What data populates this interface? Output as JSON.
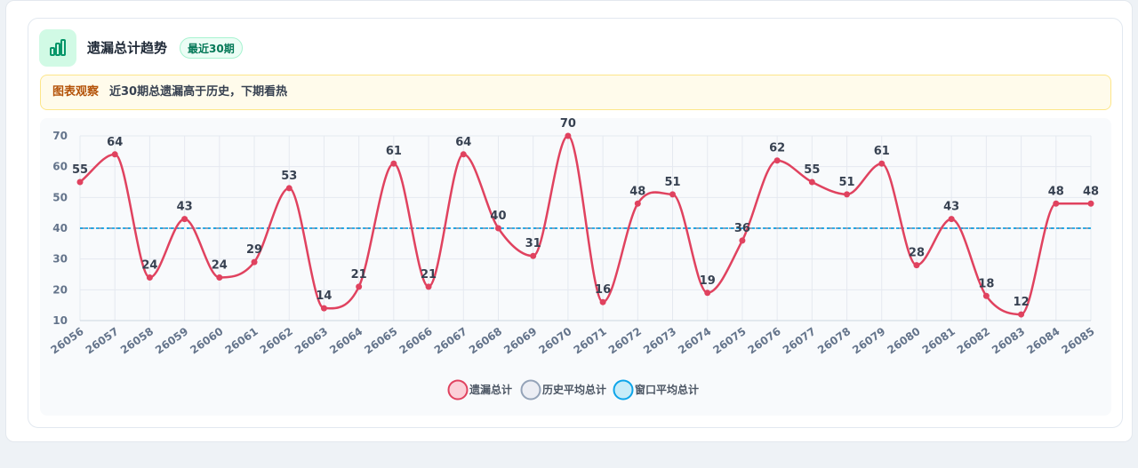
{
  "panel": {
    "title": "遗漏总计趋势",
    "badge": "最近30期",
    "notice_label": "图表观察",
    "notice_text": "近30期总遗漏高于历史，下期看热"
  },
  "colors": {
    "series_line": "#e0425f",
    "history_line": "#94a3b8",
    "window_line": "#0ea5e9",
    "icon_green": "#059669"
  },
  "chart_data": {
    "type": "line",
    "categories": [
      "26056",
      "26057",
      "26058",
      "26059",
      "26060",
      "26061",
      "26062",
      "26063",
      "26064",
      "26065",
      "26066",
      "26067",
      "26068",
      "26069",
      "26070",
      "26071",
      "26072",
      "26073",
      "26074",
      "26075",
      "26076",
      "26077",
      "26078",
      "26079",
      "26080",
      "26081",
      "26082",
      "26083",
      "26084",
      "26085"
    ],
    "series": [
      {
        "name": "遗漏总计",
        "values": [
          55,
          64,
          24,
          43,
          24,
          29,
          53,
          14,
          21,
          61,
          21,
          64,
          40,
          31,
          70,
          16,
          48,
          51,
          19,
          36,
          62,
          55,
          51,
          61,
          28,
          43,
          18,
          12,
          48,
          48
        ]
      },
      {
        "name": "历史平均总计",
        "values": [
          40,
          40,
          40,
          40,
          40,
          40,
          40,
          40,
          40,
          40,
          40,
          40,
          40,
          40,
          40,
          40,
          40,
          40,
          40,
          40,
          40,
          40,
          40,
          40,
          40,
          40,
          40,
          40,
          40,
          40
        ]
      },
      {
        "name": "窗口平均总计",
        "values": [
          40,
          40,
          40,
          40,
          40,
          40,
          40,
          40,
          40,
          40,
          40,
          40,
          40,
          40,
          40,
          40,
          40,
          40,
          40,
          40,
          40,
          40,
          40,
          40,
          40,
          40,
          40,
          40,
          40,
          40
        ]
      }
    ],
    "yticks": [
      10,
      20,
      30,
      40,
      50,
      60,
      70
    ],
    "ylim": [
      10,
      70
    ],
    "grid": true,
    "legend": "bottom-center"
  }
}
